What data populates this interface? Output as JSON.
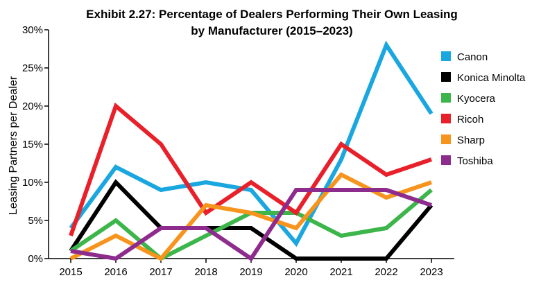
{
  "chart_data": {
    "type": "line",
    "title": "Exhibit 2.27: Percentage of Dealers Performing Their Own Leasing",
    "subtitle": "by Manufacturer (2015–2023)",
    "xlabel": "",
    "ylabel": "Leasing Partners per Dealer",
    "categories": [
      "2015",
      "2016",
      "2017",
      "2018",
      "2019",
      "2020",
      "2021",
      "2022",
      "2023"
    ],
    "ylim": [
      0,
      30
    ],
    "yticks": [
      0,
      5,
      10,
      15,
      20,
      25,
      30
    ],
    "ytick_labels": [
      "0%",
      "5%",
      "10%",
      "15%",
      "20%",
      "25%",
      "30%"
    ],
    "grid": false,
    "legend_position": "right",
    "series": [
      {
        "name": "Canon",
        "color": "#1aa7e0",
        "values": [
          4,
          12,
          9,
          10,
          9,
          2,
          13,
          28,
          19
        ]
      },
      {
        "name": "Konica Minolta",
        "color": "#000000",
        "values": [
          1,
          10,
          4,
          4,
          4,
          0,
          0,
          0,
          7
        ]
      },
      {
        "name": "Kyocera",
        "color": "#3cb54a",
        "values": [
          1,
          5,
          0,
          3,
          6,
          6,
          3,
          4,
          9
        ]
      },
      {
        "name": "Ricoh",
        "color": "#e8202a",
        "values": [
          3,
          20,
          15,
          6,
          10,
          6,
          15,
          11,
          13
        ]
      },
      {
        "name": "Sharp",
        "color": "#f7941d",
        "values": [
          0,
          3,
          0,
          7,
          6,
          4,
          11,
          8,
          10
        ]
      },
      {
        "name": "Toshiba",
        "color": "#8e2c8e",
        "values": [
          1,
          0,
          4,
          4,
          0,
          9,
          9,
          9,
          7
        ]
      }
    ]
  }
}
